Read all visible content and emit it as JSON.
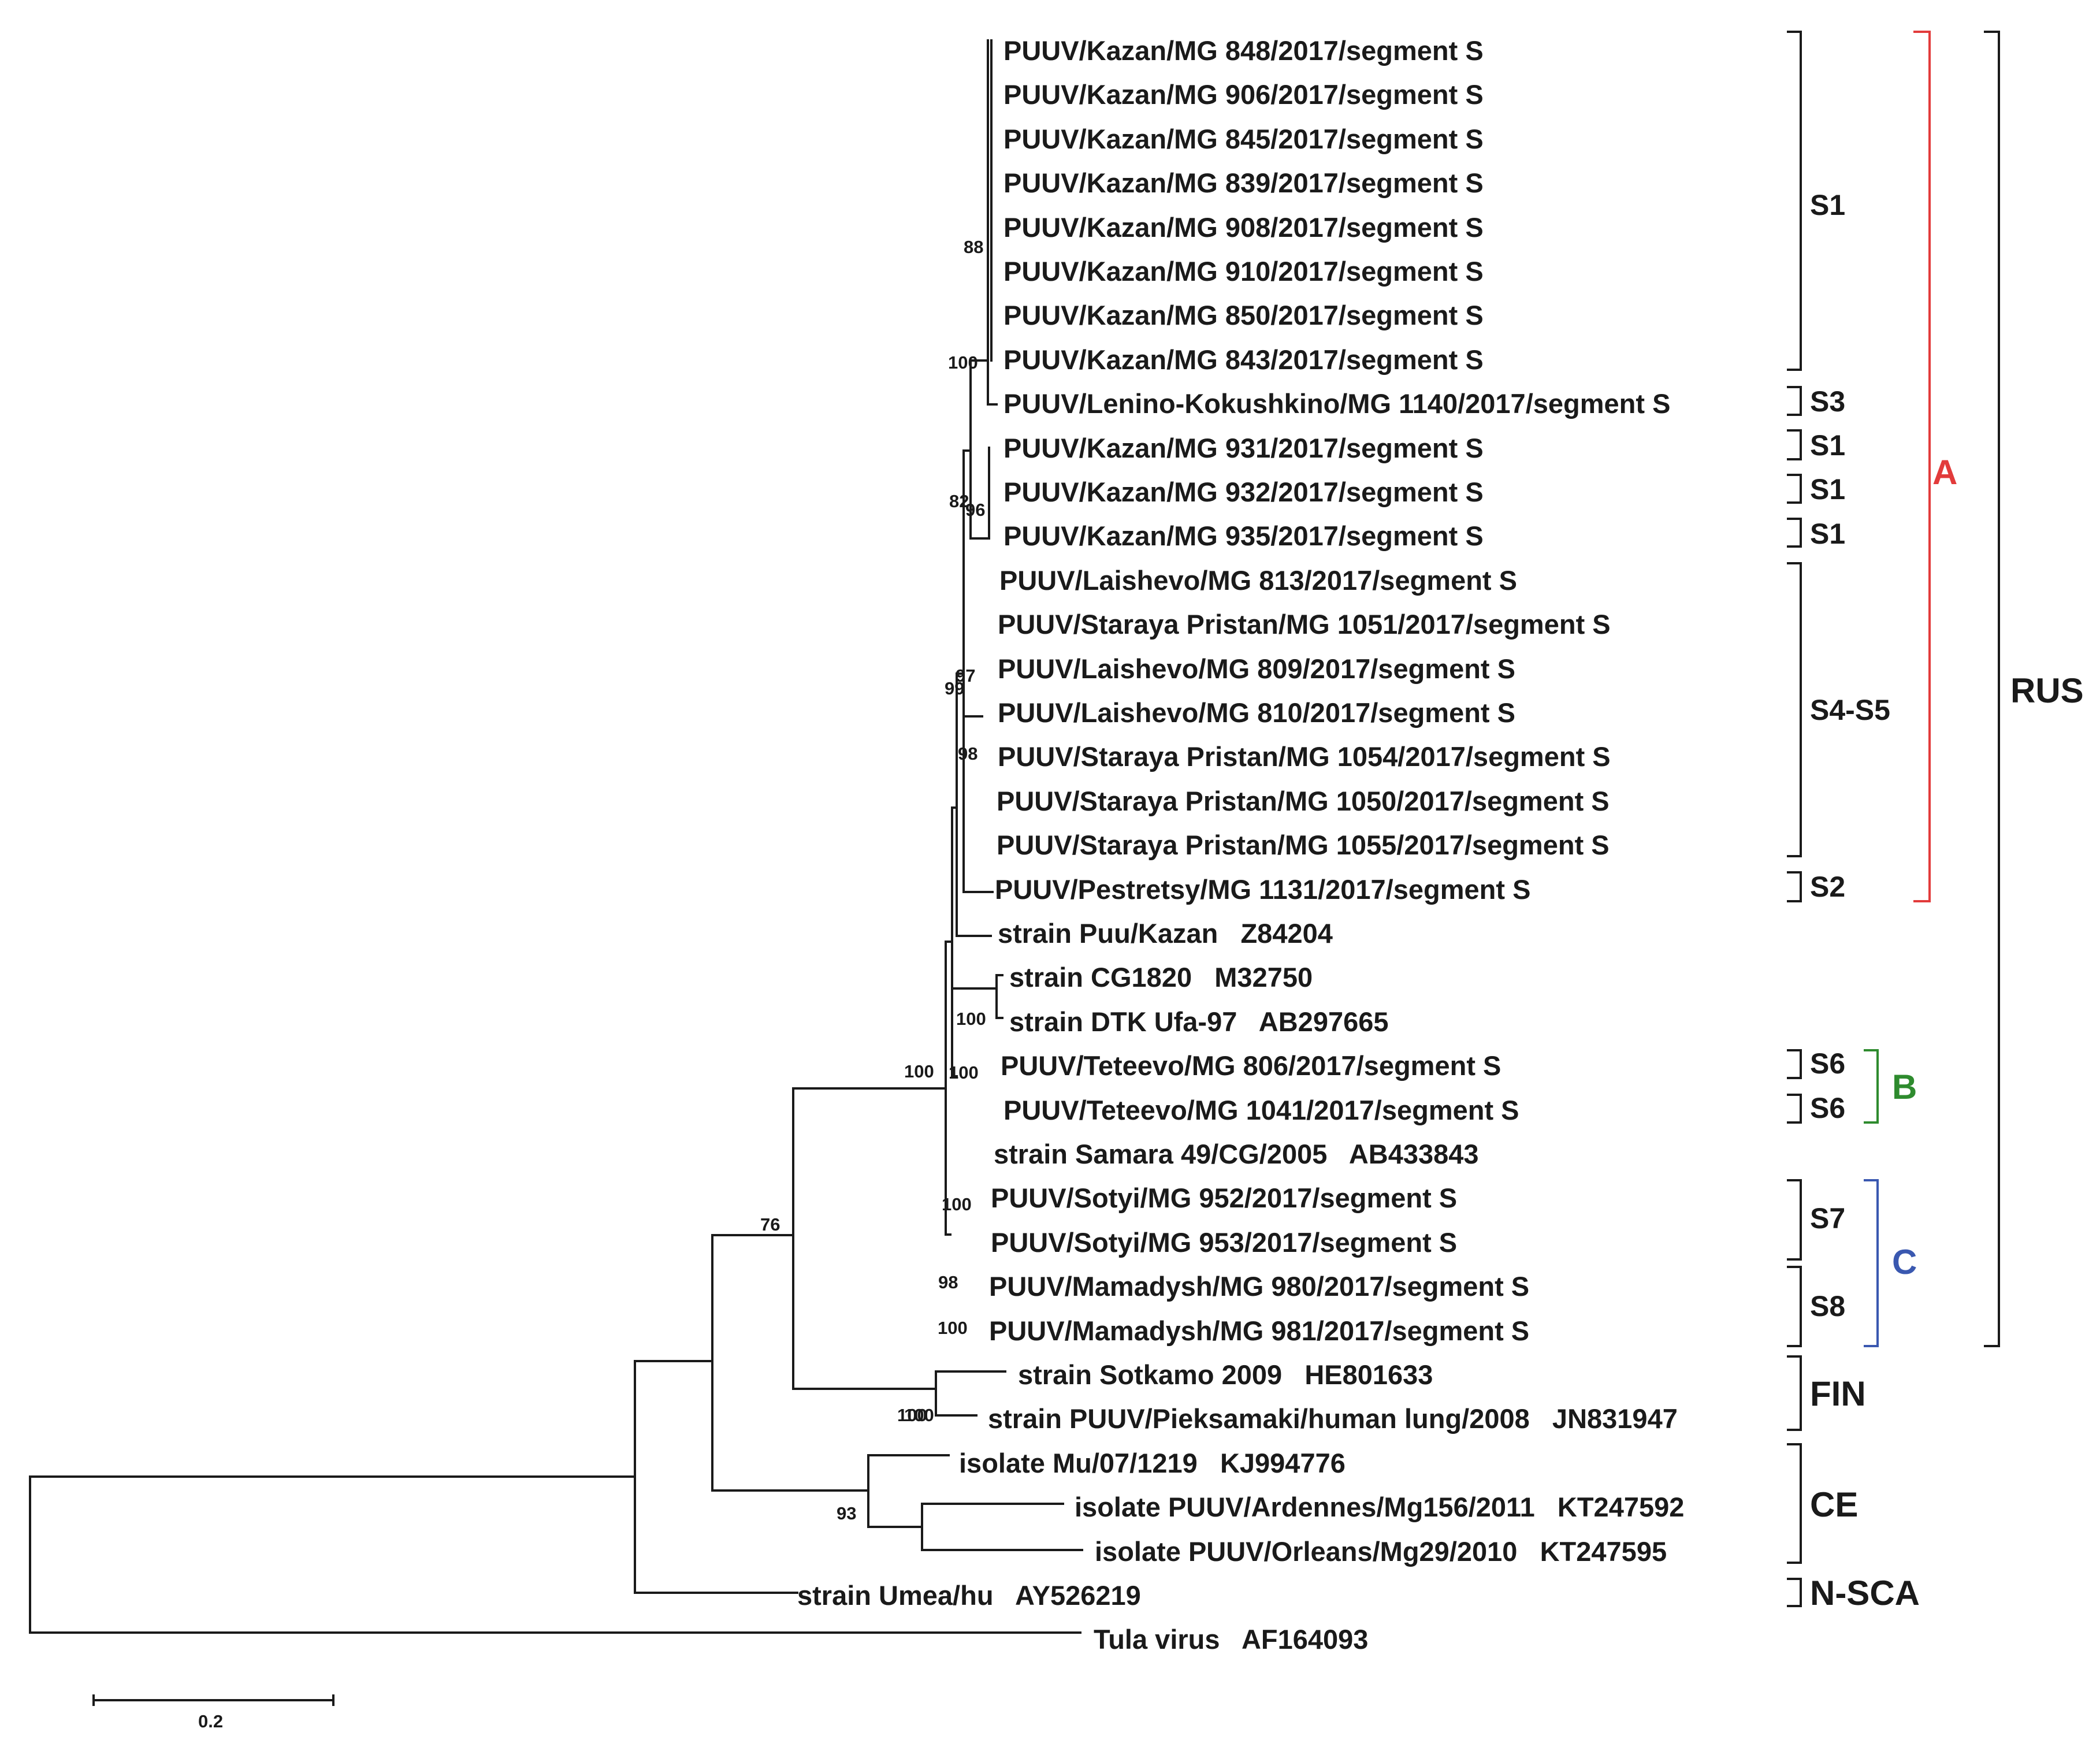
{
  "figure": {
    "type": "phylogenetic_tree",
    "scale_bar_label": "0.2"
  },
  "leaves": [
    "PUUV/Kazan/MG 848/2017/segment S",
    "PUUV/Kazan/MG 906/2017/segment S",
    "PUUV/Kazan/MG 845/2017/segment S",
    "PUUV/Kazan/MG 839/2017/segment S",
    "PUUV/Kazan/MG 908/2017/segment S",
    "PUUV/Kazan/MG 910/2017/segment S",
    "PUUV/Kazan/MG 850/2017/segment S",
    "PUUV/Kazan/MG 843/2017/segment S",
    "PUUV/Lenino-Kokushkino/MG 1140/2017/segment S",
    "PUUV/Kazan/MG 931/2017/segment S",
    "PUUV/Kazan/MG 932/2017/segment S",
    "PUUV/Kazan/MG 935/2017/segment S",
    "PUUV/Laishevo/MG 813/2017/segment S",
    "PUUV/Staraya Pristan/MG 1051/2017/segment S",
    "PUUV/Laishevo/MG 809/2017/segment S",
    "PUUV/Laishevo/MG 810/2017/segment S",
    "PUUV/Staraya Pristan/MG 1054/2017/segment S",
    "PUUV/Staraya Pristan/MG 1050/2017/segment S",
    "PUUV/Staraya Pristan/MG 1055/2017/segment S",
    "PUUV/Pestretsy/MG 1131/2017/segment S",
    "strain Puu/Kazan   Z84204",
    "strain CG1820   M32750",
    "strain DTK Ufa-97   AB297665",
    "PUUV/Teteevo/MG 806/2017/segment S",
    "PUUV/Teteevo/MG 1041/2017/segment S",
    "strain Samara 49/CG/2005   AB433843",
    "PUUV/Sotyi/MG 952/2017/segment S",
    "PUUV/Sotyi/MG 953/2017/segment S",
    "PUUV/Mamadysh/MG 980/2017/segment S",
    "PUUV/Mamadysh/MG 981/2017/segment S",
    "strain Sotkamo 2009   HE801633",
    "strain PUUV/Pieksamaki/human lung/2008   JN831947",
    "isolate Mu/07/1219   KJ994776",
    "isolate PUUV/Ardennes/Mg156/2011   KT247592",
    "isolate PUUV/Orleans/Mg29/2010   KT247595",
    "strain Umea/hu   AY526219",
    "Tula virus   AF164093"
  ],
  "bootstrap": [
    "88",
    "100",
    "82",
    "96",
    "97",
    "99",
    "98",
    "100",
    "100",
    "100",
    "100",
    "100",
    "98",
    "100",
    "76",
    "100",
    "93"
  ],
  "subclades": {
    "s1_main": "S1",
    "s3": "S3",
    "s1_931": "S1",
    "s1_932": "S1",
    "s1_935": "S1",
    "s4s5": "S4-S5",
    "s2": "S2",
    "s6_806": "S6",
    "s6_1041": "S6",
    "s7": "S7",
    "s8": "S8"
  },
  "clusters": {
    "A": "A",
    "B": "B",
    "C": "C"
  },
  "lineages": {
    "rus": "RUS",
    "fin": "FIN",
    "ce": "CE",
    "nsca": "N-SCA"
  },
  "colors": {
    "A": "#e23b3b",
    "B": "#2e8b2e",
    "C": "#3a58b0",
    "ink": "#1a1a1a"
  }
}
